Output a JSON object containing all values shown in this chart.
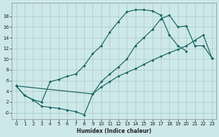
{
  "xlabel": "Humidex (Indice chaleur)",
  "bg_color": "#cde8e8",
  "grid_color": "#aac8c8",
  "line_color": "#1a6666",
  "xlim": [
    -0.5,
    23.5
  ],
  "ylim": [
    -1.2,
    20.5
  ],
  "xticks": [
    0,
    1,
    2,
    3,
    4,
    5,
    6,
    7,
    8,
    9,
    10,
    11,
    12,
    13,
    14,
    15,
    16,
    17,
    18,
    19,
    20,
    21,
    22,
    23
  ],
  "yticks": [
    0,
    2,
    4,
    6,
    8,
    10,
    12,
    14,
    16,
    18
  ],
  "line_upper_x": [
    0,
    1,
    2,
    3,
    4,
    5,
    6,
    7,
    8,
    9,
    10,
    11,
    12,
    13,
    14,
    15,
    16,
    17,
    18,
    19,
    20
  ],
  "line_upper_y": [
    5,
    3.2,
    2.4,
    2.0,
    5.8,
    6.2,
    6.8,
    7.2,
    8.8,
    11.0,
    12.5,
    15.0,
    17.0,
    18.8,
    19.2,
    19.2,
    19.0,
    18.2,
    14.5,
    12.5,
    11.5
  ],
  "line_middle_x": [
    0,
    1,
    2,
    3,
    4,
    5,
    6,
    7,
    8,
    9,
    10,
    11,
    12,
    13,
    14,
    15,
    16,
    17,
    18,
    19,
    20,
    21,
    22,
    23
  ],
  "line_middle_y": [
    5,
    3.2,
    2.4,
    1.2,
    1.0,
    0.8,
    0.5,
    0.2,
    -0.4,
    3.5,
    5.8,
    7.2,
    8.5,
    10.0,
    12.5,
    14.0,
    15.5,
    17.5,
    18.2,
    16.0,
    16.2,
    12.5,
    12.5,
    10.2
  ],
  "line_diag_x": [
    0,
    9,
    10,
    11,
    12,
    13,
    14,
    15,
    16,
    17,
    18,
    19,
    20,
    21,
    22,
    23
  ],
  "line_diag_y": [
    5,
    3.5,
    4.8,
    5.8,
    6.8,
    7.5,
    8.2,
    9.0,
    9.8,
    10.5,
    11.2,
    11.8,
    12.5,
    13.5,
    14.5,
    10.2
  ]
}
